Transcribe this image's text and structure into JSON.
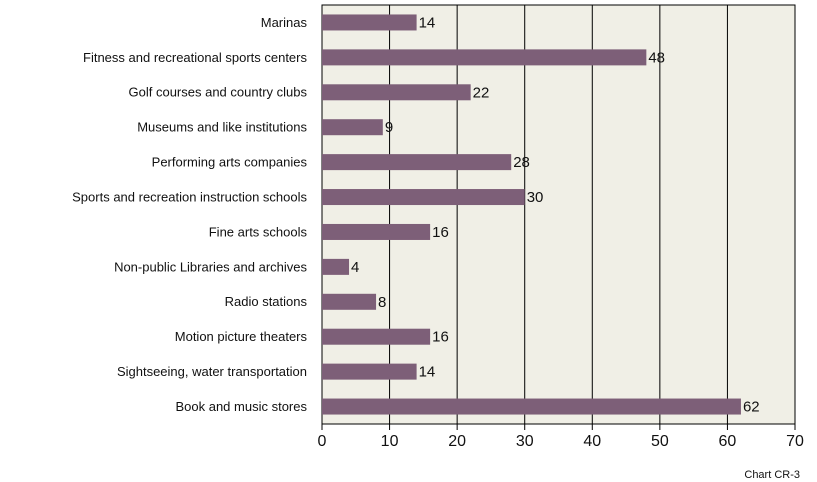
{
  "chart_data": {
    "type": "bar",
    "orientation": "horizontal",
    "categories": [
      "Marinas",
      "Fitness and recreational sports centers",
      "Golf courses and country clubs",
      "Museums and like institutions",
      "Performing arts companies",
      "Sports and recreation  instruction schools",
      "Fine arts schools",
      "Non-public Libraries and archives",
      "Radio stations",
      "Motion picture theaters",
      "Sightseeing, water transportation",
      "Book and music stores"
    ],
    "values": [
      14,
      48,
      22,
      9,
      28,
      30,
      16,
      4,
      8,
      16,
      14,
      62
    ],
    "color": "#7d5f78",
    "xlim": [
      0,
      70
    ],
    "xticks": [
      0,
      10,
      20,
      30,
      40,
      50,
      60,
      70
    ],
    "grid": true,
    "annotation": "Chart CR-3"
  }
}
